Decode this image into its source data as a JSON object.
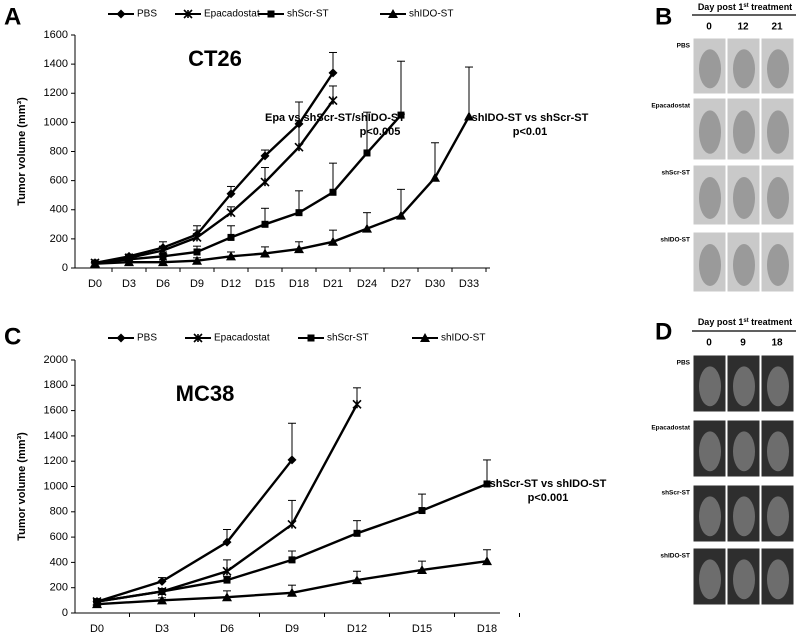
{
  "chart_data": [
    {
      "type": "line",
      "panel": "A",
      "ylabel": "Tumor volume (mm³)",
      "categories": [
        "D0",
        "D3",
        "D6",
        "D9",
        "D12",
        "D15",
        "D18",
        "D21",
        "D24",
        "D27",
        "D30",
        "D33"
      ],
      "ylim": [
        0,
        1600
      ],
      "yticks": [
        0,
        200,
        400,
        600,
        800,
        1000,
        1200,
        1400,
        1600
      ],
      "annotations": [
        "CT26",
        "Epa vs shScr-ST/shIDO-ST",
        "p<0.005",
        "shIDO-ST vs shScr-ST",
        "p<0.01"
      ],
      "series": [
        {
          "name": "PBS",
          "color": "#000000",
          "marker": "diamond",
          "values": [
            35,
            80,
            140,
            230,
            510,
            770,
            990,
            1340,
            null,
            null,
            null,
            null
          ],
          "errors": [
            10,
            15,
            40,
            60,
            50,
            40,
            150,
            140,
            null,
            null,
            null,
            null
          ]
        },
        {
          "name": "Epacadostat",
          "color": "#000000",
          "marker": "x",
          "values": [
            35,
            70,
            120,
            210,
            380,
            590,
            830,
            1150,
            null,
            null,
            null,
            null
          ],
          "errors": [
            10,
            15,
            30,
            50,
            40,
            100,
            180,
            100,
            null,
            null,
            null,
            null
          ]
        },
        {
          "name": "shScr-ST",
          "color": "#000000",
          "marker": "square",
          "values": [
            35,
            60,
            80,
            110,
            210,
            300,
            380,
            520,
            790,
            1050,
            null,
            null
          ],
          "errors": [
            10,
            15,
            30,
            40,
            80,
            110,
            150,
            200,
            280,
            370,
            null,
            null
          ]
        },
        {
          "name": "shIDO-ST",
          "color": "#000000",
          "marker": "triangle",
          "values": [
            30,
            40,
            40,
            50,
            80,
            100,
            130,
            180,
            270,
            360,
            620,
            1040
          ],
          "errors": [
            5,
            10,
            15,
            20,
            30,
            45,
            50,
            80,
            110,
            180,
            240,
            340
          ]
        }
      ]
    },
    {
      "type": "line",
      "panel": "C",
      "ylabel": "Tumor volume (mm³)",
      "categories": [
        "D0",
        "D3",
        "D6",
        "D9",
        "D12",
        "D15",
        "D18"
      ],
      "ylim": [
        0,
        2000
      ],
      "yticks": [
        0,
        200,
        400,
        600,
        800,
        1000,
        1200,
        1400,
        1600,
        1800,
        2000
      ],
      "annotations": [
        "MC38",
        "shScr-ST vs shIDO-ST",
        "p<0.001"
      ],
      "series": [
        {
          "name": "PBS",
          "color": "#000000",
          "marker": "diamond",
          "values": [
            90,
            250,
            560,
            1210,
            null,
            null,
            null
          ],
          "errors": [
            15,
            30,
            100,
            290,
            null,
            null,
            null
          ]
        },
        {
          "name": "Epacadostat",
          "color": "#000000",
          "marker": "x",
          "values": [
            90,
            170,
            330,
            700,
            1650,
            null,
            null
          ],
          "errors": [
            15,
            20,
            90,
            190,
            130,
            null,
            null
          ]
        },
        {
          "name": "shScr-ST",
          "color": "#000000",
          "marker": "square",
          "values": [
            90,
            170,
            260,
            420,
            630,
            810,
            1020
          ],
          "errors": [
            10,
            20,
            30,
            70,
            100,
            130,
            190
          ]
        },
        {
          "name": "shIDO-ST",
          "color": "#000000",
          "marker": "triangle",
          "values": [
            70,
            100,
            125,
            160,
            260,
            340,
            410
          ],
          "errors": [
            10,
            20,
            50,
            60,
            70,
            70,
            90
          ]
        }
      ]
    }
  ],
  "image_panels": [
    {
      "panel": "B",
      "header": [
        "Day post 1",
        "st",
        " treatment"
      ],
      "days": [
        "0",
        "12",
        "21"
      ],
      "rows": [
        "PBS",
        "Epacadostat",
        "shScr-ST",
        "shIDO-ST"
      ]
    },
    {
      "panel": "D",
      "header": [
        "Day post 1",
        "st",
        " treatment"
      ],
      "days": [
        "0",
        "9",
        "18"
      ],
      "rows": [
        "PBS",
        "Epacadostat",
        "shScr-ST",
        "shIDO-ST"
      ]
    }
  ]
}
